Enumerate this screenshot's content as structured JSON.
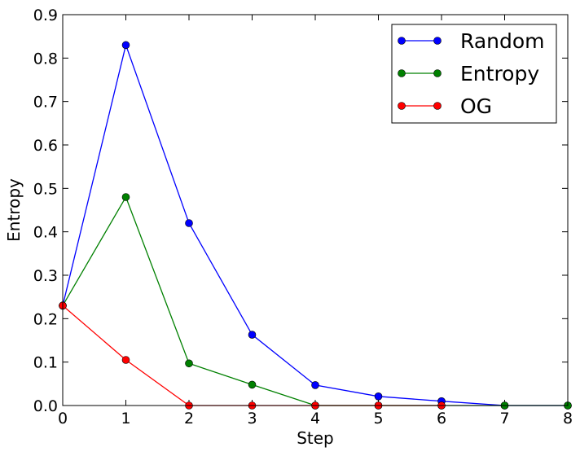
{
  "chart_data": {
    "type": "line",
    "title": "",
    "xlabel": "Step",
    "ylabel": "Entropy",
    "xlim": [
      0,
      8
    ],
    "ylim": [
      0,
      0.9
    ],
    "xticks": [
      "0",
      "1",
      "2",
      "3",
      "4",
      "5",
      "6",
      "7",
      "8"
    ],
    "yticks": [
      "0.0",
      "0.1",
      "0.2",
      "0.3",
      "0.4",
      "0.5",
      "0.6",
      "0.7",
      "0.8",
      "0.9"
    ],
    "grid": false,
    "legend_position": "top-right",
    "series": [
      {
        "name": "Random",
        "color": "#0000ff",
        "x": [
          0,
          1,
          2,
          3,
          4,
          5,
          6,
          7,
          8
        ],
        "y": [
          0.23,
          0.83,
          0.42,
          0.163,
          0.047,
          0.021,
          0.01,
          0.0,
          0.0
        ]
      },
      {
        "name": "Entropy",
        "color": "#008000",
        "x": [
          0,
          1,
          2,
          3,
          4,
          5,
          6,
          7,
          8
        ],
        "y": [
          0.23,
          0.48,
          0.097,
          0.048,
          0.0,
          0.0,
          0.0,
          0.0,
          0.0
        ]
      },
      {
        "name": "OG",
        "color": "#ff0000",
        "x": [
          0,
          1,
          2,
          3,
          4,
          5,
          6
        ],
        "y": [
          0.23,
          0.105,
          0.0,
          0.0,
          0.0,
          0.0,
          0.0
        ]
      }
    ]
  }
}
